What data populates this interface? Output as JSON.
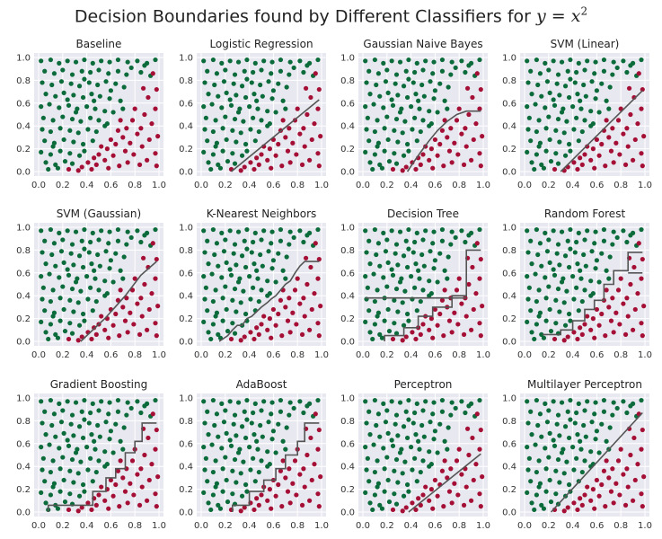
{
  "figure": {
    "title_text": "Decision Boundaries found by Different Classifiers for ",
    "title_math": "y = x",
    "title_exp": "2"
  },
  "colors": {
    "background": "#ffffff",
    "axes_face": "#e8e8f0",
    "grid": "#ffffff",
    "class_above": "#0b6b3a",
    "class_below": "#a50f35",
    "boundary": "#555555"
  },
  "chart_data": {
    "type": "scatter",
    "xlim": [
      0,
      1
    ],
    "ylim": [
      0,
      1
    ],
    "xticks": [
      "0.0",
      "0.2",
      "0.4",
      "0.6",
      "0.8",
      "1.0"
    ],
    "yticks": [
      "0.0",
      "0.2",
      "0.4",
      "0.6",
      "0.8",
      "1.0"
    ],
    "grid": true,
    "points": {
      "above": [
        [
          0.02,
          0.97
        ],
        [
          0.1,
          0.98
        ],
        [
          0.17,
          0.95
        ],
        [
          0.24,
          0.97
        ],
        [
          0.31,
          0.96
        ],
        [
          0.38,
          0.98
        ],
        [
          0.45,
          0.95
        ],
        [
          0.52,
          0.97
        ],
        [
          0.59,
          0.96
        ],
        [
          0.66,
          0.98
        ],
        [
          0.74,
          0.96
        ],
        [
          0.82,
          0.97
        ],
        [
          0.9,
          0.95
        ],
        [
          0.97,
          0.98
        ],
        [
          0.05,
          0.88
        ],
        [
          0.13,
          0.86
        ],
        [
          0.2,
          0.89
        ],
        [
          0.28,
          0.85
        ],
        [
          0.36,
          0.88
        ],
        [
          0.43,
          0.87
        ],
        [
          0.5,
          0.89
        ],
        [
          0.58,
          0.86
        ],
        [
          0.66,
          0.88
        ],
        [
          0.73,
          0.85
        ],
        [
          0.85,
          0.87
        ],
        [
          0.93,
          0.84
        ],
        [
          0.03,
          0.78
        ],
        [
          0.11,
          0.76
        ],
        [
          0.19,
          0.79
        ],
        [
          0.27,
          0.77
        ],
        [
          0.34,
          0.75
        ],
        [
          0.42,
          0.78
        ],
        [
          0.49,
          0.76
        ],
        [
          0.56,
          0.79
        ],
        [
          0.64,
          0.77
        ],
        [
          0.71,
          0.74
        ],
        [
          0.06,
          0.68
        ],
        [
          0.14,
          0.66
        ],
        [
          0.21,
          0.69
        ],
        [
          0.29,
          0.67
        ],
        [
          0.37,
          0.65
        ],
        [
          0.44,
          0.68
        ],
        [
          0.51,
          0.66
        ],
        [
          0.59,
          0.64
        ],
        [
          0.68,
          0.62
        ],
        [
          0.02,
          0.57
        ],
        [
          0.09,
          0.59
        ],
        [
          0.17,
          0.56
        ],
        [
          0.25,
          0.58
        ],
        [
          0.32,
          0.55
        ],
        [
          0.4,
          0.57
        ],
        [
          0.47,
          0.55
        ],
        [
          0.55,
          0.53
        ],
        [
          0.62,
          0.52
        ],
        [
          0.7,
          0.55
        ],
        [
          0.04,
          0.47
        ],
        [
          0.12,
          0.45
        ],
        [
          0.2,
          0.48
        ],
        [
          0.28,
          0.46
        ],
        [
          0.35,
          0.44
        ],
        [
          0.43,
          0.47
        ],
        [
          0.5,
          0.45
        ],
        [
          0.57,
          0.42
        ],
        [
          0.03,
          0.37
        ],
        [
          0.1,
          0.35
        ],
        [
          0.18,
          0.38
        ],
        [
          0.26,
          0.36
        ],
        [
          0.33,
          0.34
        ],
        [
          0.41,
          0.37
        ],
        [
          0.48,
          0.35
        ],
        [
          0.55,
          0.4
        ],
        [
          0.05,
          0.27
        ],
        [
          0.13,
          0.25
        ],
        [
          0.21,
          0.28
        ],
        [
          0.29,
          0.26
        ],
        [
          0.37,
          0.24
        ],
        [
          0.45,
          0.27
        ],
        [
          0.02,
          0.17
        ],
        [
          0.1,
          0.15
        ],
        [
          0.18,
          0.18
        ],
        [
          0.26,
          0.16
        ],
        [
          0.34,
          0.14
        ],
        [
          0.38,
          0.18
        ],
        [
          0.06,
          0.08
        ],
        [
          0.14,
          0.06
        ],
        [
          0.22,
          0.09
        ],
        [
          0.28,
          0.07
        ],
        [
          0.08,
          0.02
        ],
        [
          0.16,
          0.03
        ],
        [
          0.12,
          0.22
        ],
        [
          0.31,
          0.52
        ],
        [
          0.46,
          0.62
        ],
        [
          0.6,
          0.71
        ],
        [
          0.77,
          0.91
        ],
        [
          0.88,
          0.93
        ],
        [
          0.38,
          0.81
        ],
        [
          0.24,
          0.63
        ]
      ],
      "below": [
        [
          0.95,
          0.86
        ],
        [
          0.98,
          0.72
        ],
        [
          0.91,
          0.65
        ],
        [
          0.97,
          0.55
        ],
        [
          0.88,
          0.5
        ],
        [
          0.94,
          0.42
        ],
        [
          0.85,
          0.38
        ],
        [
          0.99,
          0.31
        ],
        [
          0.92,
          0.28
        ],
        [
          0.86,
          0.22
        ],
        [
          0.97,
          0.16
        ],
        [
          0.9,
          0.1
        ],
        [
          0.98,
          0.05
        ],
        [
          0.8,
          0.55
        ],
        [
          0.78,
          0.45
        ],
        [
          0.82,
          0.33
        ],
        [
          0.76,
          0.25
        ],
        [
          0.79,
          0.15
        ],
        [
          0.84,
          0.06
        ],
        [
          0.73,
          0.38
        ],
        [
          0.7,
          0.3
        ],
        [
          0.72,
          0.18
        ],
        [
          0.74,
          0.08
        ],
        [
          0.66,
          0.36
        ],
        [
          0.64,
          0.24
        ],
        [
          0.62,
          0.14
        ],
        [
          0.67,
          0.05
        ],
        [
          0.6,
          0.28
        ],
        [
          0.57,
          0.2
        ],
        [
          0.55,
          0.1
        ],
        [
          0.58,
          0.03
        ],
        [
          0.52,
          0.22
        ],
        [
          0.5,
          0.15
        ],
        [
          0.48,
          0.06
        ],
        [
          0.46,
          0.12
        ],
        [
          0.44,
          0.02
        ],
        [
          0.41,
          0.08
        ],
        [
          0.36,
          0.04
        ],
        [
          0.33,
          0.01
        ],
        [
          0.25,
          0.02
        ],
        [
          0.68,
          0.45
        ],
        [
          0.87,
          0.73
        ]
      ]
    },
    "subplots": [
      {
        "title": "Baseline",
        "boundary": []
      },
      {
        "title": "Logistic Regression",
        "boundary": [
          [
            0.25,
            0.0
          ],
          [
            0.98,
            0.63
          ]
        ]
      },
      {
        "title": "Gaussian Naive Bayes",
        "boundary": [
          [
            0.37,
            0.0
          ],
          [
            0.42,
            0.08
          ],
          [
            0.48,
            0.17
          ],
          [
            0.55,
            0.27
          ],
          [
            0.62,
            0.36
          ],
          [
            0.7,
            0.44
          ],
          [
            0.78,
            0.5
          ],
          [
            0.86,
            0.53
          ],
          [
            0.98,
            0.53
          ]
        ]
      },
      {
        "title": "SVM (Linear)",
        "boundary": [
          [
            0.3,
            0.0
          ],
          [
            0.98,
            0.71
          ]
        ]
      },
      {
        "title": "SVM (Gaussian)",
        "boundary": [
          [
            0.35,
            0.0
          ],
          [
            0.55,
            0.2
          ],
          [
            0.72,
            0.4
          ],
          [
            0.85,
            0.58
          ],
          [
            0.98,
            0.7
          ]
        ]
      },
      {
        "title": "K-Nearest Neighbors",
        "boundary": [
          [
            0.15,
            0.0
          ],
          [
            0.22,
            0.05
          ],
          [
            0.26,
            0.1
          ],
          [
            0.3,
            0.14
          ],
          [
            0.34,
            0.14
          ],
          [
            0.38,
            0.2
          ],
          [
            0.42,
            0.22
          ],
          [
            0.46,
            0.26
          ],
          [
            0.5,
            0.3
          ],
          [
            0.55,
            0.34
          ],
          [
            0.58,
            0.37
          ],
          [
            0.62,
            0.4
          ],
          [
            0.66,
            0.45
          ],
          [
            0.7,
            0.5
          ],
          [
            0.74,
            0.53
          ],
          [
            0.78,
            0.6
          ],
          [
            0.82,
            0.66
          ],
          [
            0.86,
            0.7
          ],
          [
            0.98,
            0.7
          ]
        ]
      },
      {
        "title": "Decision Tree",
        "boundary": [
          [
            0.18,
            0.0
          ],
          [
            0.18,
            0.05
          ],
          [
            0.34,
            0.05
          ],
          [
            0.34,
            0.12
          ],
          [
            0.46,
            0.12
          ],
          [
            0.46,
            0.22
          ],
          [
            0.58,
            0.22
          ],
          [
            0.58,
            0.3
          ],
          [
            0.74,
            0.3
          ],
          [
            0.74,
            0.4
          ],
          [
            0.86,
            0.4
          ],
          [
            0.86,
            0.8
          ],
          [
            0.98,
            0.8
          ]
        ],
        "extra_boundary": [
          [
            0.02,
            0.38
          ],
          [
            0.86,
            0.38
          ]
        ]
      },
      {
        "title": "Random Forest",
        "boundary": [
          [
            0.15,
            0.06
          ],
          [
            0.3,
            0.06
          ],
          [
            0.3,
            0.1
          ],
          [
            0.4,
            0.1
          ],
          [
            0.4,
            0.18
          ],
          [
            0.5,
            0.18
          ],
          [
            0.5,
            0.28
          ],
          [
            0.58,
            0.28
          ],
          [
            0.58,
            0.36
          ],
          [
            0.66,
            0.36
          ],
          [
            0.66,
            0.5
          ],
          [
            0.74,
            0.5
          ],
          [
            0.74,
            0.62
          ],
          [
            0.86,
            0.62
          ],
          [
            0.86,
            0.78
          ],
          [
            0.98,
            0.78
          ]
        ],
        "extra_boundary": [
          [
            0.86,
            0.6
          ],
          [
            0.98,
            0.6
          ]
        ]
      },
      {
        "title": "Gradient Boosting",
        "boundary": [
          [
            0.08,
            0.0
          ],
          [
            0.08,
            0.06
          ],
          [
            0.45,
            0.06
          ],
          [
            0.45,
            0.18
          ],
          [
            0.56,
            0.18
          ],
          [
            0.56,
            0.3
          ],
          [
            0.64,
            0.3
          ],
          [
            0.64,
            0.38
          ],
          [
            0.72,
            0.38
          ],
          [
            0.72,
            0.52
          ],
          [
            0.8,
            0.52
          ],
          [
            0.8,
            0.62
          ],
          [
            0.86,
            0.62
          ],
          [
            0.86,
            0.78
          ],
          [
            0.98,
            0.78
          ]
        ]
      },
      {
        "title": "AdaBoost",
        "boundary": [
          [
            0.26,
            0.0
          ],
          [
            0.26,
            0.06
          ],
          [
            0.4,
            0.06
          ],
          [
            0.4,
            0.18
          ],
          [
            0.52,
            0.18
          ],
          [
            0.52,
            0.28
          ],
          [
            0.62,
            0.28
          ],
          [
            0.62,
            0.38
          ],
          [
            0.7,
            0.38
          ],
          [
            0.7,
            0.5
          ],
          [
            0.8,
            0.5
          ],
          [
            0.8,
            0.62
          ],
          [
            0.86,
            0.62
          ],
          [
            0.86,
            0.78
          ],
          [
            0.98,
            0.78
          ]
        ]
      },
      {
        "title": "Perceptron",
        "boundary": [
          [
            0.38,
            0.0
          ],
          [
            0.98,
            0.51
          ]
        ]
      },
      {
        "title": "Multilayer Perceptron",
        "boundary": [
          [
            0.22,
            0.0
          ],
          [
            0.98,
            0.87
          ]
        ]
      }
    ]
  }
}
